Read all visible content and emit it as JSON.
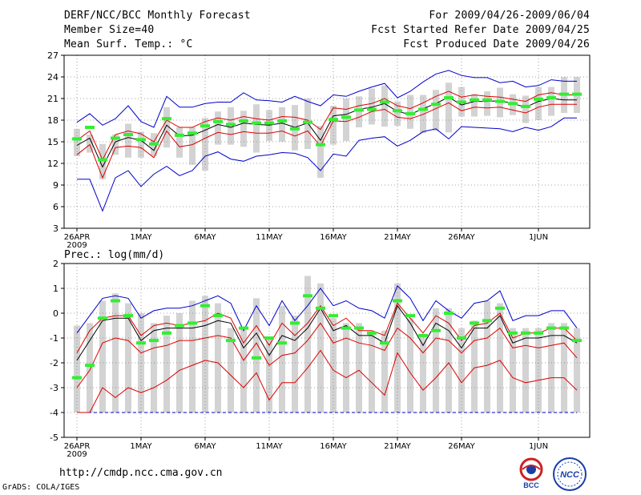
{
  "header": {
    "title": "DERF/NCC/BCC Monthly Forecast",
    "member_size": "Member Size=40",
    "variable": "Mean Surf. Temp.: °C",
    "period": "For 2009/04/26-2009/06/04",
    "fcst_started": "Fcst Started Refer Date 2009/04/25",
    "fcst_produced": "Fcst Produced Date 2009/04/26"
  },
  "footer": {
    "url": "http://cmdp.ncc.cma.gov.cn",
    "grads": "GrADS: COLA/IGES",
    "logo_bcc": "BCC",
    "logo_ncc": "NCC"
  },
  "colors": {
    "box": "#d3d3d3",
    "green": "#33ee33",
    "red": "#dd0000",
    "blue": "#0000cc",
    "black": "#000000",
    "grid": "#888888",
    "logo_red": "#cc2222",
    "logo_blue": "#1a3ea8"
  },
  "chart_data": [
    {
      "type": "ensemble-boxplot",
      "title": "Mean Surf. Temp.: °C",
      "ylim": [
        3,
        27
      ],
      "yticks": [
        3,
        6,
        9,
        12,
        15,
        18,
        21,
        24,
        27
      ],
      "x_tick_labels": [
        "26APR",
        "1MAY",
        "6MAY",
        "11MAY",
        "16MAY",
        "21MAY",
        "26MAY",
        "1JUN"
      ],
      "x_tick_days": [
        0,
        5,
        10,
        15,
        20,
        25,
        30,
        36
      ],
      "x_sublabel": "2009",
      "days": 40,
      "series": [
        {
          "name": "max",
          "color": "blue",
          "values": [
            17.7,
            18.9,
            17.3,
            18.2,
            20.0,
            17.8,
            17.0,
            21.3,
            19.8,
            19.8,
            20.3,
            20.5,
            20.5,
            21.8,
            20.8,
            20.7,
            20.5,
            21.3,
            20.6,
            20.0,
            21.5,
            21.3,
            22.0,
            22.6,
            23.1,
            21.1,
            22.0,
            23.3,
            24.4,
            24.9,
            24.2,
            23.9,
            23.9,
            23.2,
            23.4,
            22.6,
            22.8,
            23.6,
            23.4,
            23.4
          ]
        },
        {
          "name": "upper",
          "color": "red",
          "values": [
            15.2,
            16.5,
            12.5,
            16.0,
            16.5,
            16.1,
            15.0,
            18.0,
            17.0,
            17.0,
            17.8,
            18.3,
            18.0,
            18.5,
            18.2,
            18.0,
            18.5,
            18.4,
            18.0,
            16.7,
            19.7,
            19.5,
            20.0,
            20.3,
            21.0,
            20.0,
            19.6,
            20.4,
            21.3,
            22.0,
            21.2,
            21.5,
            21.3,
            21.2,
            20.9,
            20.6,
            21.5,
            21.8,
            21.5,
            21.5
          ]
        },
        {
          "name": "mean",
          "color": "black",
          "values": [
            14.5,
            15.5,
            11.5,
            15.0,
            15.6,
            15.2,
            13.8,
            17.3,
            15.8,
            15.9,
            16.6,
            17.4,
            17.0,
            17.6,
            17.4,
            17.3,
            17.6,
            17.0,
            17.6,
            15.2,
            18.6,
            18.8,
            19.5,
            19.8,
            20.3,
            19.2,
            18.8,
            19.6,
            20.3,
            21.2,
            20.1,
            20.6,
            20.6,
            20.7,
            20.3,
            19.8,
            20.6,
            21.0,
            20.8,
            20.8
          ]
        },
        {
          "name": "lower",
          "color": "red",
          "values": [
            13.2,
            14.6,
            10.0,
            14.2,
            14.4,
            14.2,
            12.8,
            16.5,
            14.3,
            14.6,
            15.5,
            16.3,
            16.0,
            16.4,
            16.2,
            16.2,
            16.5,
            15.8,
            16.5,
            14.4,
            17.9,
            17.8,
            18.4,
            19.2,
            19.5,
            18.4,
            18.2,
            18.8,
            19.6,
            20.4,
            19.3,
            19.8,
            19.7,
            19.8,
            19.4,
            19.0,
            19.8,
            20.2,
            20.2,
            20.2
          ]
        },
        {
          "name": "min",
          "color": "blue",
          "values": [
            9.8,
            9.8,
            5.4,
            10.0,
            11.0,
            8.8,
            10.5,
            11.6,
            10.3,
            11.0,
            13.0,
            13.6,
            12.6,
            12.3,
            13.0,
            13.2,
            13.5,
            13.4,
            12.8,
            11.0,
            13.3,
            13.0,
            15.2,
            15.5,
            15.7,
            14.4,
            15.2,
            16.4,
            16.8,
            15.4,
            17.1,
            17.0,
            16.9,
            16.8,
            16.4,
            17.0,
            16.6,
            17.1,
            18.3,
            18.3
          ]
        },
        {
          "name": "median",
          "color": "green",
          "values": [
            15.4,
            17.0,
            12.5,
            15.5,
            16.0,
            15.3,
            14.7,
            18.2,
            15.9,
            16.2,
            17.2,
            17.8,
            17.4,
            17.9,
            17.6,
            17.6,
            17.9,
            16.8,
            17.7,
            14.6,
            18.1,
            18.4,
            19.4,
            19.5,
            20.5,
            19.3,
            18.9,
            19.5,
            20.2,
            21.1,
            20.5,
            20.8,
            20.8,
            20.6,
            20.3,
            19.9,
            20.9,
            21.1,
            21.6,
            21.6
          ]
        },
        {
          "name": "box_high",
          "color": "box",
          "values": [
            16.8,
            16.0,
            14.7,
            16.0,
            17.5,
            16.4,
            16.2,
            19.8,
            17.0,
            17.0,
            18.3,
            19.2,
            19.8,
            19.3,
            20.2,
            19.4,
            19.8,
            20.1,
            21.0,
            17.2,
            20.0,
            21.0,
            21.3,
            22.4,
            22.8,
            20.6,
            21.5,
            21.5,
            22.2,
            23.2,
            22.6,
            21.6,
            22.0,
            22.5,
            21.6,
            21.4,
            22.6,
            22.6,
            24.0,
            24.0
          ]
        },
        {
          "name": "box_low",
          "color": "box",
          "values": [
            13.0,
            13.5,
            9.8,
            13.2,
            12.8,
            12.8,
            13.0,
            14.2,
            12.8,
            11.8,
            11.0,
            14.6,
            14.6,
            14.3,
            13.5,
            15.1,
            15.0,
            13.8,
            14.0,
            10.0,
            14.6,
            15.1,
            17.0,
            17.4,
            17.1,
            17.2,
            16.8,
            16.2,
            16.5,
            16.3,
            18.5,
            18.5,
            18.6,
            18.4,
            18.7,
            17.6,
            18.0,
            18.6,
            19.0,
            19.0
          ]
        }
      ]
    },
    {
      "type": "ensemble-boxplot",
      "title": "Prec.: log(mm/d)",
      "ylim": [
        -5,
        2
      ],
      "yticks": [
        -5,
        -4,
        -3,
        -2,
        -1,
        0,
        1,
        2
      ],
      "x_tick_labels": [
        "26APR",
        "1MAY",
        "6MAY",
        "11MAY",
        "16MAY",
        "21MAY",
        "26MAY",
        "1JUN"
      ],
      "x_tick_days": [
        0,
        5,
        10,
        15,
        20,
        25,
        30,
        36
      ],
      "x_sublabel": "2009",
      "days": 40,
      "baseline": -4,
      "series": [
        {
          "name": "max",
          "color": "blue",
          "values": [
            -0.8,
            -0.1,
            0.6,
            0.7,
            0.6,
            -0.2,
            0.1,
            0.2,
            0.2,
            0.3,
            0.5,
            0.7,
            0.4,
            -0.7,
            0.3,
            -0.5,
            0.5,
            -0.3,
            0.3,
            1.0,
            0.3,
            0.5,
            0.2,
            0.1,
            -0.2,
            1.1,
            0.6,
            -0.3,
            0.5,
            0.1,
            -0.2,
            0.4,
            0.5,
            0.9,
            -0.3,
            -0.1,
            -0.1,
            0.1,
            0.1,
            -0.6
          ]
        },
        {
          "name": "upper",
          "color": "red",
          "values": [
            -1.6,
            -0.7,
            -0.2,
            -0.1,
            -0.1,
            -0.9,
            -0.5,
            -0.4,
            -0.5,
            -0.4,
            -0.3,
            0.0,
            -0.2,
            -1.2,
            -0.5,
            -1.3,
            -0.4,
            -0.9,
            -0.4,
            0.3,
            -0.5,
            -0.2,
            -0.7,
            -0.7,
            -0.9,
            0.4,
            -0.2,
            -0.8,
            -0.1,
            -0.4,
            -1.1,
            -0.5,
            -0.4,
            0.0,
            -1.0,
            -0.8,
            -0.8,
            -0.6,
            -0.6,
            -1.1
          ]
        },
        {
          "name": "mean",
          "color": "black",
          "values": [
            -1.9,
            -1.1,
            -0.3,
            -0.2,
            -0.2,
            -1.1,
            -0.7,
            -0.6,
            -0.6,
            -0.6,
            -0.5,
            -0.3,
            -0.4,
            -1.4,
            -0.8,
            -1.7,
            -0.9,
            -1.1,
            -0.6,
            0.2,
            -0.7,
            -0.5,
            -0.9,
            -0.9,
            -1.2,
            0.3,
            -0.4,
            -1.3,
            -0.4,
            -0.7,
            -1.4,
            -0.6,
            -0.6,
            -0.1,
            -1.2,
            -1.0,
            -1.0,
            -0.9,
            -0.9,
            -1.2
          ]
        },
        {
          "name": "lower",
          "color": "red",
          "values": [
            -3.0,
            -2.3,
            -1.2,
            -1.0,
            -1.1,
            -1.6,
            -1.4,
            -1.3,
            -1.1,
            -1.1,
            -1.0,
            -0.9,
            -1.0,
            -1.9,
            -1.2,
            -2.1,
            -1.7,
            -1.6,
            -1.1,
            -0.4,
            -1.2,
            -1.0,
            -1.2,
            -1.3,
            -1.5,
            -0.6,
            -1.0,
            -1.6,
            -1.0,
            -1.1,
            -1.6,
            -1.1,
            -1.0,
            -0.6,
            -1.4,
            -1.3,
            -1.4,
            -1.3,
            -1.2,
            -1.8
          ]
        },
        {
          "name": "min",
          "color": "red",
          "values": [
            -4.0,
            -4.0,
            -3.0,
            -3.4,
            -3.0,
            -3.2,
            -3.0,
            -2.7,
            -2.3,
            -2.1,
            -1.9,
            -2.0,
            -2.5,
            -3.0,
            -2.4,
            -3.5,
            -2.8,
            -2.8,
            -2.2,
            -1.5,
            -2.3,
            -2.6,
            -2.3,
            -2.8,
            -3.3,
            -1.6,
            -2.4,
            -3.1,
            -2.6,
            -2.0,
            -2.8,
            -2.2,
            -2.1,
            -1.9,
            -2.6,
            -2.8,
            -2.7,
            -2.6,
            -2.6,
            -3.1
          ]
        },
        {
          "name": "median",
          "color": "green",
          "values": [
            -2.6,
            -2.1,
            -0.2,
            0.5,
            -0.1,
            -1.2,
            -1.1,
            -0.8,
            -0.5,
            -0.4,
            0.3,
            -0.1,
            -1.1,
            -0.6,
            -1.8,
            -1.0,
            -1.2,
            -0.4,
            0.7,
            0.2,
            -0.1,
            -0.6,
            -0.6,
            -0.8,
            -1.2,
            0.5,
            -0.1,
            -0.9,
            -0.7,
            0.0,
            -1.0,
            -0.4,
            -0.3,
            0.2,
            -0.8,
            -0.8,
            -0.8,
            -0.6,
            -0.6,
            -1.1
          ]
        },
        {
          "name": "box_high",
          "color": "box",
          "values": [
            -0.5,
            -0.4,
            0.5,
            0.8,
            0.4,
            0.0,
            -0.4,
            -0.1,
            0.0,
            0.5,
            0.7,
            0.4,
            -0.6,
            -0.6,
            0.6,
            -1.0,
            0.3,
            -0.1,
            1.5,
            1.2,
            -0.2,
            -0.4,
            -0.4,
            -0.8,
            -0.7,
            1.2,
            -0.2,
            -0.9,
            0.2,
            0.2,
            -0.6,
            -0.3,
            0.5,
            0.4,
            -0.6,
            -0.6,
            -0.6,
            -0.4,
            -0.4,
            -0.6
          ]
        },
        {
          "name": "box_low",
          "color": "box",
          "values": [
            -4.0,
            -4.0,
            -4.0,
            -4.0,
            -4.0,
            -4.0,
            -4.0,
            -4.0,
            -4.0,
            -4.0,
            -4.0,
            -4.0,
            -4.0,
            -4.0,
            -4.0,
            -4.0,
            -4.0,
            -4.0,
            -4.0,
            -4.0,
            -4.0,
            -4.0,
            -4.0,
            -4.0,
            -4.0,
            -4.0,
            -4.0,
            -4.0,
            -4.0,
            -4.0,
            -4.0,
            -4.0,
            -4.0,
            -4.0,
            -4.0,
            -4.0,
            -4.0,
            -4.0,
            -4.0,
            -4.0
          ]
        }
      ]
    }
  ]
}
